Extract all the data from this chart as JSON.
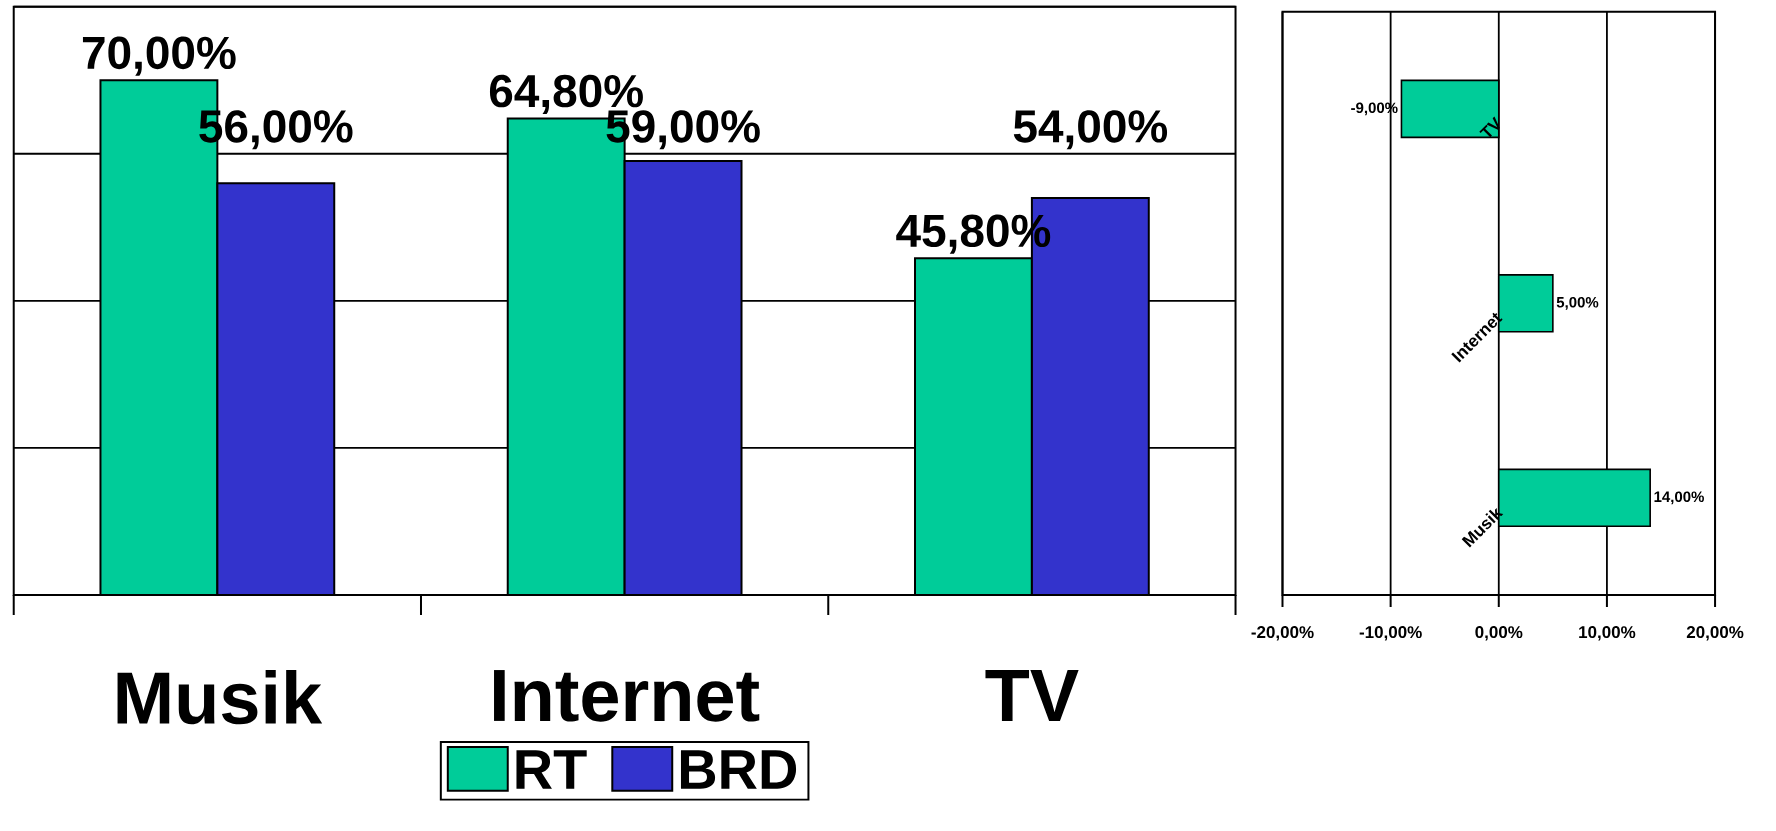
{
  "chart_data": [
    {
      "type": "bar",
      "categories": [
        "Musik",
        "Internet",
        "TV"
      ],
      "series": [
        {
          "name": "RT",
          "color": "#00cc99",
          "values": [
            70,
            64.8,
            45.8
          ],
          "value_labels": [
            "70,00%",
            "64,80%",
            "45,80%"
          ]
        },
        {
          "name": "BRD",
          "color": "#3333cc",
          "values": [
            56,
            59,
            54
          ],
          "value_labels": [
            "56,00%",
            "59,00%",
            "54,00%"
          ]
        }
      ],
      "ylim": [
        0,
        80
      ],
      "yticks": [
        {
          "value": 20,
          "label": null
        },
        {
          "value": 40,
          "label": null
        },
        {
          "value": 60,
          "label": null
        },
        {
          "value": 80,
          "label": null
        }
      ],
      "tick_labels": "x",
      "grid": "y",
      "legend": "bottom"
    },
    {
      "type": "bar",
      "orientation": "horizontal",
      "categories": [
        "TV",
        "Internet",
        "Musik"
      ],
      "series": [
        {
          "color": "#00cc99",
          "values": [
            -9,
            5,
            14
          ],
          "value_labels": [
            "-9,00%",
            "5,00%",
            "14,00%"
          ]
        }
      ],
      "xlim": [
        -20,
        20
      ],
      "xticks": [
        {
          "value": -20,
          "label": "-20,00%"
        },
        {
          "value": -10,
          "label": "-10,00%"
        },
        {
          "value": 0,
          "label": "0,00%"
        },
        {
          "value": 10,
          "label": "10,00%"
        },
        {
          "value": 20,
          "label": "20,00%"
        }
      ],
      "grid": "x"
    }
  ]
}
